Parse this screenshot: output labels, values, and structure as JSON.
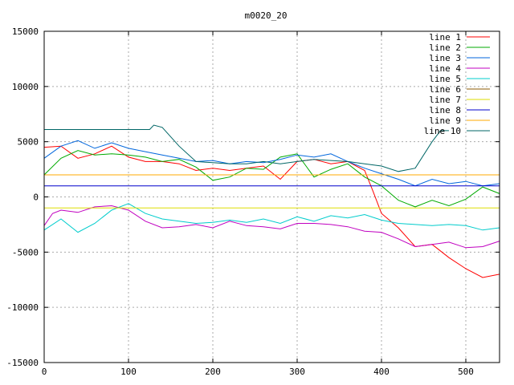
{
  "chart_data": {
    "type": "line",
    "title": "m0020_20",
    "xlabel": "",
    "ylabel": "",
    "xlim": [
      0,
      540
    ],
    "ylim": [
      -15000,
      15000
    ],
    "xticks": [
      0,
      100,
      200,
      300,
      400,
      500
    ],
    "yticks": [
      -15000,
      -10000,
      -5000,
      0,
      5000,
      10000,
      15000
    ],
    "grid": true,
    "legend_position": "top-right",
    "series": [
      {
        "name": "line 1",
        "color": "#ff0000",
        "x": [
          0,
          20,
          40,
          60,
          80,
          100,
          120,
          140,
          160,
          180,
          200,
          220,
          240,
          260,
          280,
          300,
          320,
          340,
          360,
          380,
          390,
          400,
          420,
          440,
          460,
          480,
          500,
          520,
          540
        ],
        "y": [
          4500,
          4600,
          3500,
          3900,
          4600,
          3600,
          3200,
          3200,
          3000,
          2400,
          2600,
          2400,
          2600,
          2800,
          1600,
          3200,
          3400,
          3000,
          3200,
          2400,
          500,
          -1500,
          -2800,
          -4500,
          -4300,
          -5500,
          -6500,
          -7300,
          -7000
        ]
      },
      {
        "name": "line 2",
        "color": "#00aa00",
        "x": [
          0,
          20,
          40,
          60,
          80,
          100,
          120,
          140,
          160,
          180,
          200,
          220,
          240,
          260,
          280,
          300,
          320,
          340,
          360,
          380,
          400,
          420,
          440,
          460,
          480,
          500,
          520,
          540
        ],
        "y": [
          2000,
          3500,
          4200,
          3800,
          3900,
          3800,
          3600,
          3200,
          3400,
          2700,
          1500,
          1800,
          2600,
          2500,
          3600,
          3900,
          1800,
          2500,
          3000,
          1800,
          1000,
          -300,
          -900,
          -300,
          -800,
          -200,
          900,
          300
        ]
      },
      {
        "name": "line 3",
        "color": "#0066dd",
        "x": [
          0,
          20,
          40,
          60,
          80,
          100,
          120,
          140,
          160,
          180,
          200,
          220,
          240,
          260,
          280,
          300,
          320,
          340,
          360,
          380,
          400,
          420,
          440,
          460,
          480,
          500,
          520,
          540
        ],
        "y": [
          3500,
          4600,
          5100,
          4400,
          4900,
          4400,
          4100,
          3800,
          3500,
          3200,
          3300,
          3000,
          3200,
          3100,
          3400,
          3800,
          3600,
          3900,
          3200,
          2600,
          2100,
          1600,
          1000,
          1600,
          1200,
          1400,
          1000,
          1200
        ]
      },
      {
        "name": "line 4",
        "color": "#c000c0",
        "x": [
          0,
          10,
          20,
          40,
          60,
          80,
          100,
          120,
          140,
          160,
          180,
          200,
          220,
          240,
          260,
          280,
          300,
          320,
          340,
          360,
          380,
          400,
          420,
          440,
          460,
          480,
          500,
          520,
          540
        ],
        "y": [
          -2600,
          -1500,
          -1200,
          -1400,
          -900,
          -800,
          -1200,
          -2200,
          -2800,
          -2700,
          -2500,
          -2800,
          -2200,
          -2600,
          -2700,
          -2900,
          -2400,
          -2400,
          -2500,
          -2700,
          -3100,
          -3200,
          -3800,
          -4500,
          -4300,
          -4100,
          -4600,
          -4500,
          -4000
        ]
      },
      {
        "name": "line 5",
        "color": "#00cccc",
        "x": [
          0,
          20,
          40,
          60,
          80,
          100,
          120,
          140,
          160,
          180,
          200,
          220,
          240,
          260,
          280,
          300,
          320,
          340,
          360,
          380,
          400,
          420,
          440,
          460,
          480,
          500,
          520,
          540
        ],
        "y": [
          -3000,
          -2000,
          -3200,
          -2400,
          -1200,
          -600,
          -1500,
          -2000,
          -2200,
          -2400,
          -2300,
          -2100,
          -2300,
          -2000,
          -2400,
          -1800,
          -2200,
          -1700,
          -1900,
          -1600,
          -2100,
          -2400,
          -2500,
          -2600,
          -2500,
          -2600,
          -3000,
          -2800
        ]
      },
      {
        "name": "line 6",
        "color": "#8b5a00",
        "x": [
          0,
          480
        ],
        "y": [
          2000,
          2000
        ]
      },
      {
        "name": "line 7",
        "color": "#dddd00",
        "x": [
          0,
          540
        ],
        "y": [
          -1000,
          -1000
        ]
      },
      {
        "name": "line 8",
        "color": "#0000cc",
        "x": [
          0,
          540
        ],
        "y": [
          1000,
          1000
        ]
      },
      {
        "name": "line 9",
        "color": "#ffaa00",
        "x": [
          0,
          540
        ],
        "y": [
          2000,
          2000
        ]
      },
      {
        "name": "line 10",
        "color": "#006666",
        "x": [
          0,
          20,
          40,
          60,
          80,
          100,
          125,
          130,
          140,
          160,
          180,
          200,
          220,
          240,
          260,
          280,
          300,
          320,
          340,
          360,
          380,
          400,
          420,
          440,
          460,
          470,
          480
        ],
        "y": [
          6100,
          6100,
          6100,
          6100,
          6100,
          6100,
          6100,
          6500,
          6300,
          4600,
          3200,
          3100,
          3000,
          3000,
          3200,
          3000,
          3200,
          3400,
          3300,
          3200,
          3000,
          2800,
          2300,
          2600,
          5000,
          6000,
          6000
        ]
      }
    ]
  }
}
